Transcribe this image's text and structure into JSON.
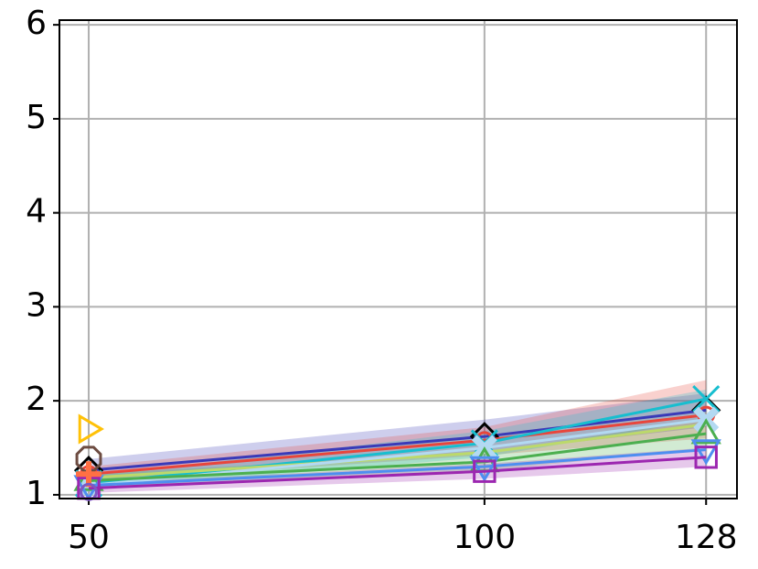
{
  "chart_data": {
    "type": "line",
    "x": [
      50,
      100,
      128
    ],
    "xlim": [
      46.3,
      131.9
    ],
    "xticks": [
      50,
      100,
      128
    ],
    "ylim": [
      0.96,
      6.05
    ],
    "yticks": [
      1,
      2,
      3,
      4,
      5,
      6
    ],
    "grid": true,
    "series": [
      {
        "color": "#3a3ab8",
        "marker": "D",
        "marker_color": "#000000",
        "values": [
          1.26,
          1.62,
          1.9
        ],
        "lower": [
          1.16,
          1.45,
          1.72
        ],
        "upper": [
          1.38,
          1.8,
          2.08
        ]
      },
      {
        "color": "#e8463c",
        "marker": "o",
        "marker_color": "#e8463c",
        "values": [
          1.22,
          1.58,
          1.85
        ],
        "lower": [
          1.14,
          1.42,
          1.6
        ],
        "upper": [
          1.3,
          1.72,
          2.22
        ]
      },
      {
        "color": "#17becf",
        "marker": "x",
        "marker_color": "#17becf",
        "values": [
          1.12,
          1.55,
          2.02
        ],
        "lower": [
          1.05,
          1.4,
          1.8
        ],
        "upper": [
          1.2,
          1.68,
          2.12
        ]
      },
      {
        "color": "#bcd96b",
        "marker": "none",
        "marker_color": "#bcd96b",
        "values": [
          1.18,
          1.45,
          1.75
        ]
      },
      {
        "color": "#b3d9f2",
        "marker": "X",
        "marker_color": "#b3d9f2",
        "values": [
          1.1,
          1.5,
          1.8
        ]
      },
      {
        "color": "#4caf50",
        "marker": "^",
        "marker_color": "#4caf50",
        "values": [
          1.15,
          1.35,
          1.65
        ],
        "lower": [
          1.08,
          1.25,
          1.5
        ],
        "upper": [
          1.22,
          1.45,
          1.8
        ]
      },
      {
        "color": "#4e8ef0",
        "marker": "v",
        "marker_color": "#4e8ef0",
        "values": [
          1.1,
          1.3,
          1.48
        ]
      },
      {
        "color": "#9c27b0",
        "marker": "s",
        "marker_color": "#9c27b0",
        "values": [
          1.07,
          1.25,
          1.4
        ],
        "lower": [
          1.02,
          1.17,
          1.3
        ],
        "upper": [
          1.12,
          1.33,
          1.5
        ]
      },
      {
        "color": "#ffc107",
        "marker": ">",
        "marker_color": "#ffc107",
        "values": [
          1.7,
          null,
          null
        ]
      },
      {
        "color": "#6d4c41",
        "marker": "8",
        "marker_color": "#6d4c41",
        "values": [
          1.38,
          null,
          null
        ]
      },
      {
        "color": "#ff7043",
        "marker": "P",
        "marker_color": "#ff7043",
        "values": [
          1.22,
          null,
          null
        ]
      },
      {
        "color": "#7e57c2",
        "marker": "o",
        "marker_color": "#7e57c2",
        "values": [
          1.03,
          null,
          null
        ]
      }
    ]
  }
}
